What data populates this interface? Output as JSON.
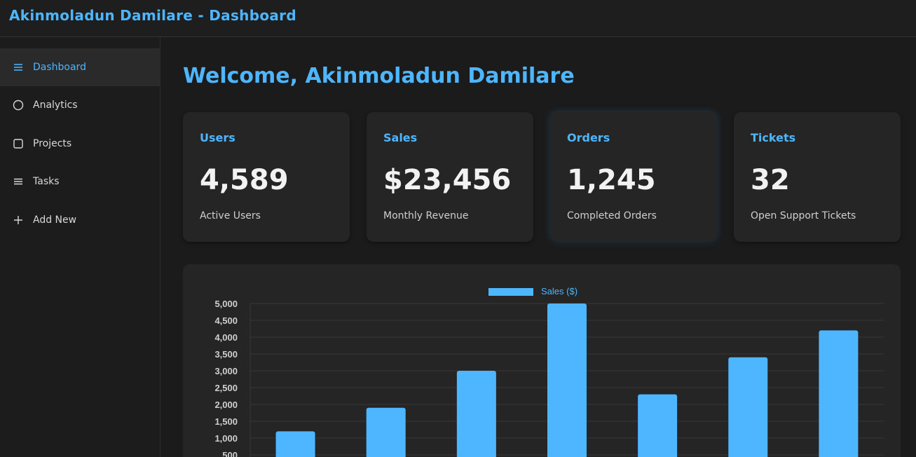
{
  "header": {
    "title": "Akinmoladun Damilare - Dashboard"
  },
  "sidebar": {
    "items": [
      {
        "label": "Dashboard",
        "icon": "menu-icon",
        "active": true
      },
      {
        "label": "Analytics",
        "icon": "circle-icon",
        "active": false
      },
      {
        "label": "Projects",
        "icon": "square-icon",
        "active": false
      },
      {
        "label": "Tasks",
        "icon": "list-icon",
        "active": false
      },
      {
        "label": "Add New",
        "icon": "plus-icon",
        "active": false
      }
    ]
  },
  "main": {
    "welcome": "Welcome, Akinmoladun Damilare",
    "cards": [
      {
        "title": "Users",
        "value": "4,589",
        "subtitle": "Active Users"
      },
      {
        "title": "Sales",
        "value": "$23,456",
        "subtitle": "Monthly Revenue"
      },
      {
        "title": "Orders",
        "value": "1,245",
        "subtitle": "Completed Orders"
      },
      {
        "title": "Tickets",
        "value": "32",
        "subtitle": "Open Support Tickets"
      }
    ]
  },
  "colors": {
    "accent": "#4db6ff",
    "background": "#1b1b1b",
    "card": "#252525"
  },
  "chart_data": {
    "type": "bar",
    "categories": [
      "",
      "",
      "",
      "",
      "",
      "",
      ""
    ],
    "series": [
      {
        "name": "Sales ($)",
        "values": [
          1200,
          1900,
          3000,
          5000,
          2300,
          3400,
          4200
        ]
      }
    ],
    "ylim": [
      500,
      5000
    ],
    "yticks": [
      "5,000",
      "4,500",
      "4,000",
      "3,500",
      "3,000",
      "2,500",
      "2,000",
      "1,500",
      "1,000",
      "500"
    ],
    "legend": "top",
    "grid": true
  }
}
